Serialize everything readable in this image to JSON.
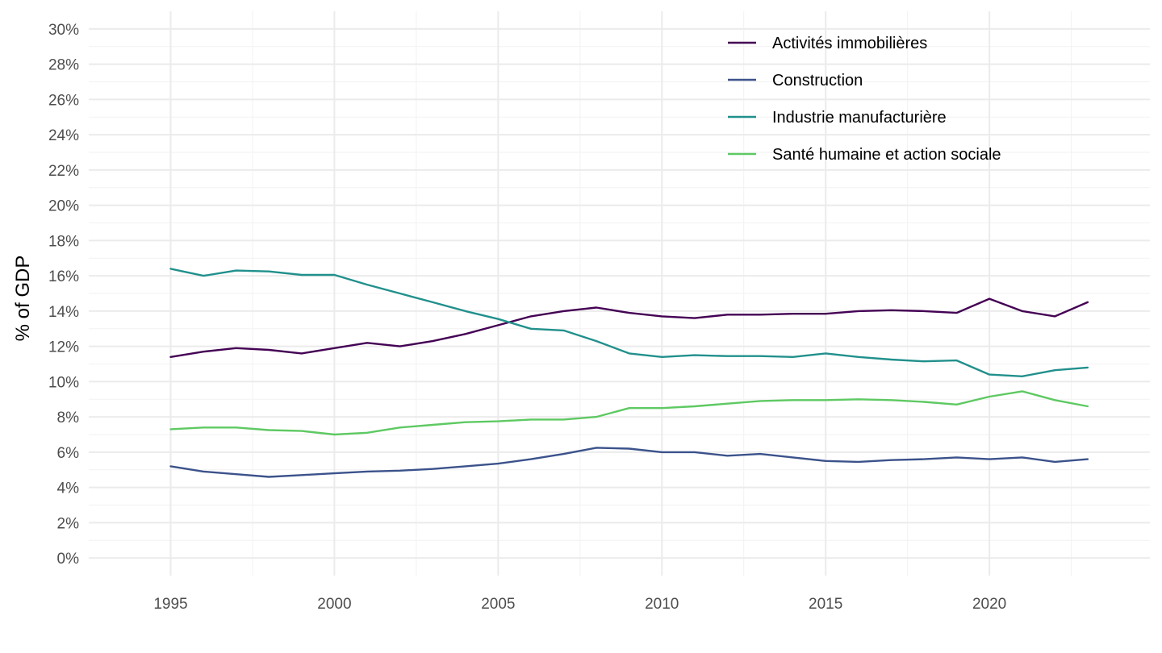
{
  "chart_data": {
    "type": "line",
    "title": "",
    "xlabel": "",
    "ylabel": "% of GDP",
    "xlim": [
      1992.5,
      2024.9
    ],
    "ylim": [
      -1,
      31
    ],
    "x_ticks": [
      1995,
      2000,
      2005,
      2010,
      2015,
      2020
    ],
    "x_tick_labels": [
      "1995",
      "2000",
      "2005",
      "2010",
      "2015",
      "2020"
    ],
    "y_ticks": [
      0,
      2,
      4,
      6,
      8,
      10,
      12,
      14,
      16,
      18,
      20,
      22,
      24,
      26,
      28,
      30
    ],
    "y_tick_labels": [
      "0%",
      "2%",
      "4%",
      "6%",
      "8%",
      "10%",
      "12%",
      "14%",
      "16%",
      "18%",
      "20%",
      "22%",
      "24%",
      "26%",
      "28%",
      "30%"
    ],
    "grid": true,
    "legend_position": "top-right",
    "x": [
      1995,
      1996,
      1997,
      1998,
      1999,
      2000,
      2001,
      2002,
      2003,
      2004,
      2005,
      2006,
      2007,
      2008,
      2009,
      2010,
      2011,
      2012,
      2013,
      2014,
      2015,
      2016,
      2017,
      2018,
      2019,
      2020,
      2021,
      2022,
      2023
    ],
    "series": [
      {
        "name": "Activités immobilières",
        "color": "#440154",
        "values": [
          11.4,
          11.7,
          11.9,
          11.8,
          11.6,
          11.9,
          12.2,
          12.0,
          12.3,
          12.7,
          13.2,
          13.7,
          14.0,
          14.2,
          13.9,
          13.7,
          13.6,
          13.8,
          13.8,
          13.85,
          13.85,
          14.0,
          14.05,
          14.0,
          13.9,
          14.7,
          14.0,
          13.7,
          14.5
        ]
      },
      {
        "name": "Construction",
        "color": "#3b528b",
        "values": [
          5.2,
          4.9,
          4.75,
          4.6,
          4.7,
          4.8,
          4.9,
          4.95,
          5.05,
          5.2,
          5.35,
          5.6,
          5.9,
          6.25,
          6.2,
          6.0,
          6.0,
          5.8,
          5.9,
          5.7,
          5.5,
          5.45,
          5.55,
          5.6,
          5.7,
          5.6,
          5.7,
          5.45,
          5.6
        ]
      },
      {
        "name": "Industrie manufacturière",
        "color": "#21908c",
        "values": [
          16.4,
          16.0,
          16.3,
          16.25,
          16.05,
          16.05,
          15.5,
          15.0,
          14.5,
          14.0,
          13.55,
          13.0,
          12.9,
          12.3,
          11.6,
          11.4,
          11.5,
          11.45,
          11.45,
          11.4,
          11.6,
          11.4,
          11.25,
          11.15,
          11.2,
          10.4,
          10.3,
          10.65,
          10.8
        ]
      },
      {
        "name": "Santé humaine et action sociale",
        "color": "#5ec962",
        "values": [
          7.3,
          7.4,
          7.4,
          7.25,
          7.2,
          7.0,
          7.1,
          7.4,
          7.55,
          7.7,
          7.75,
          7.85,
          7.85,
          8.0,
          8.5,
          8.5,
          8.6,
          8.75,
          8.9,
          8.95,
          8.95,
          9.0,
          8.95,
          8.85,
          8.7,
          9.15,
          9.45,
          8.95,
          8.6
        ]
      }
    ]
  }
}
